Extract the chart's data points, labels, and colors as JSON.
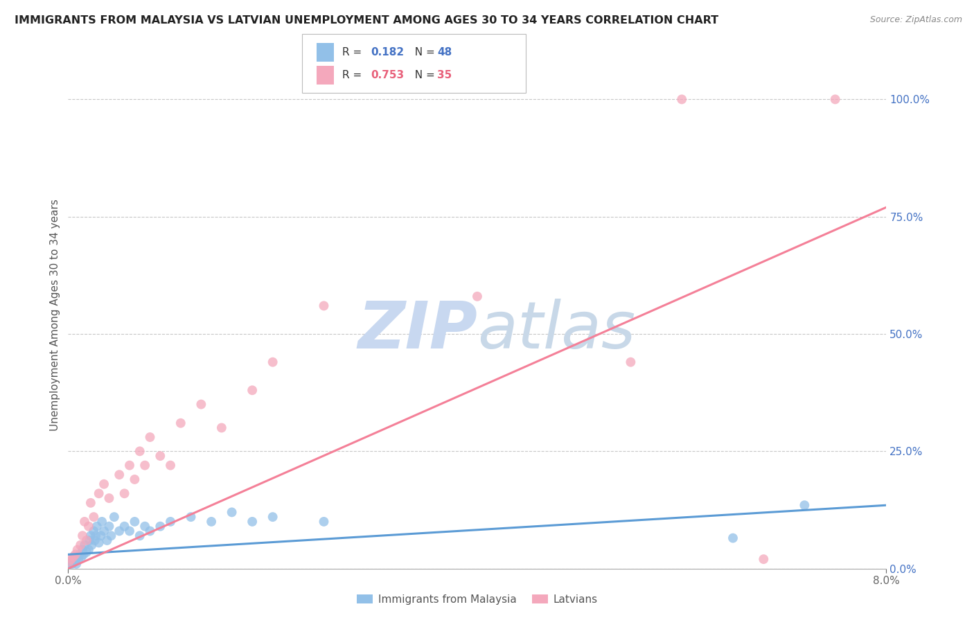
{
  "title": "IMMIGRANTS FROM MALAYSIA VS LATVIAN UNEMPLOYMENT AMONG AGES 30 TO 34 YEARS CORRELATION CHART",
  "source": "Source: ZipAtlas.com",
  "ylabel": "Unemployment Among Ages 30 to 34 years",
  "legend_label1": "Immigrants from Malaysia",
  "legend_label2": "Latvians",
  "R1": 0.182,
  "N1": 48,
  "R2": 0.753,
  "N2": 35,
  "color_blue": "#92C0E8",
  "color_pink": "#F4A8BC",
  "color_blue_text": "#4472C4",
  "color_pink_text": "#E8607A",
  "color_line_blue": "#5B9BD5",
  "color_line_pink": "#F48098",
  "watermark_zip": "#C8D8F0",
  "watermark_atlas": "#C8D8E8",
  "background_color": "#FFFFFF",
  "grid_color": "#C8C8C8",
  "title_color": "#222222",
  "xlim": [
    0.0,
    0.08
  ],
  "ylim": [
    0.0,
    1.08
  ],
  "yticks": [
    0.0,
    0.25,
    0.5,
    0.75,
    1.0
  ],
  "ytick_labels": [
    "0.0%",
    "25.0%",
    "50.0%",
    "75.0%",
    "100.0%"
  ],
  "scatter_blue": {
    "x": [
      0.0002,
      0.0003,
      0.0004,
      0.0005,
      0.0006,
      0.0007,
      0.0008,
      0.0009,
      0.001,
      0.0011,
      0.0013,
      0.0014,
      0.0015,
      0.0016,
      0.0018,
      0.002,
      0.0021,
      0.0022,
      0.0023,
      0.0025,
      0.0026,
      0.0027,
      0.0028,
      0.003,
      0.0032,
      0.0033,
      0.0035,
      0.0038,
      0.004,
      0.0042,
      0.0045,
      0.005,
      0.0055,
      0.006,
      0.0065,
      0.007,
      0.0075,
      0.008,
      0.009,
      0.01,
      0.012,
      0.014,
      0.016,
      0.018,
      0.02,
      0.025,
      0.065,
      0.072
    ],
    "y": [
      0.01,
      0.015,
      0.01,
      0.02,
      0.015,
      0.02,
      0.01,
      0.025,
      0.02,
      0.03,
      0.025,
      0.04,
      0.03,
      0.05,
      0.035,
      0.04,
      0.06,
      0.07,
      0.05,
      0.08,
      0.06,
      0.07,
      0.09,
      0.055,
      0.07,
      0.1,
      0.08,
      0.06,
      0.09,
      0.07,
      0.11,
      0.08,
      0.09,
      0.08,
      0.1,
      0.07,
      0.09,
      0.08,
      0.09,
      0.1,
      0.11,
      0.1,
      0.12,
      0.1,
      0.11,
      0.1,
      0.065,
      0.135
    ]
  },
  "scatter_pink": {
    "x": [
      0.0001,
      0.0003,
      0.0005,
      0.0007,
      0.0009,
      0.0012,
      0.0014,
      0.0016,
      0.0018,
      0.002,
      0.0022,
      0.0025,
      0.003,
      0.0035,
      0.004,
      0.005,
      0.0055,
      0.006,
      0.0065,
      0.007,
      0.0075,
      0.008,
      0.009,
      0.01,
      0.011,
      0.013,
      0.015,
      0.018,
      0.02,
      0.025,
      0.04,
      0.055,
      0.06,
      0.068,
      0.075
    ],
    "y": [
      0.015,
      0.02,
      0.025,
      0.03,
      0.04,
      0.05,
      0.07,
      0.1,
      0.06,
      0.09,
      0.14,
      0.11,
      0.16,
      0.18,
      0.15,
      0.2,
      0.16,
      0.22,
      0.19,
      0.25,
      0.22,
      0.28,
      0.24,
      0.22,
      0.31,
      0.35,
      0.3,
      0.38,
      0.44,
      0.56,
      0.58,
      0.44,
      1.0,
      0.02,
      1.0
    ]
  },
  "trendline_blue": {
    "x": [
      0.0,
      0.08
    ],
    "y": [
      0.03,
      0.135
    ]
  },
  "trendline_pink": {
    "x": [
      0.0,
      0.08
    ],
    "y": [
      0.0,
      0.77
    ]
  }
}
